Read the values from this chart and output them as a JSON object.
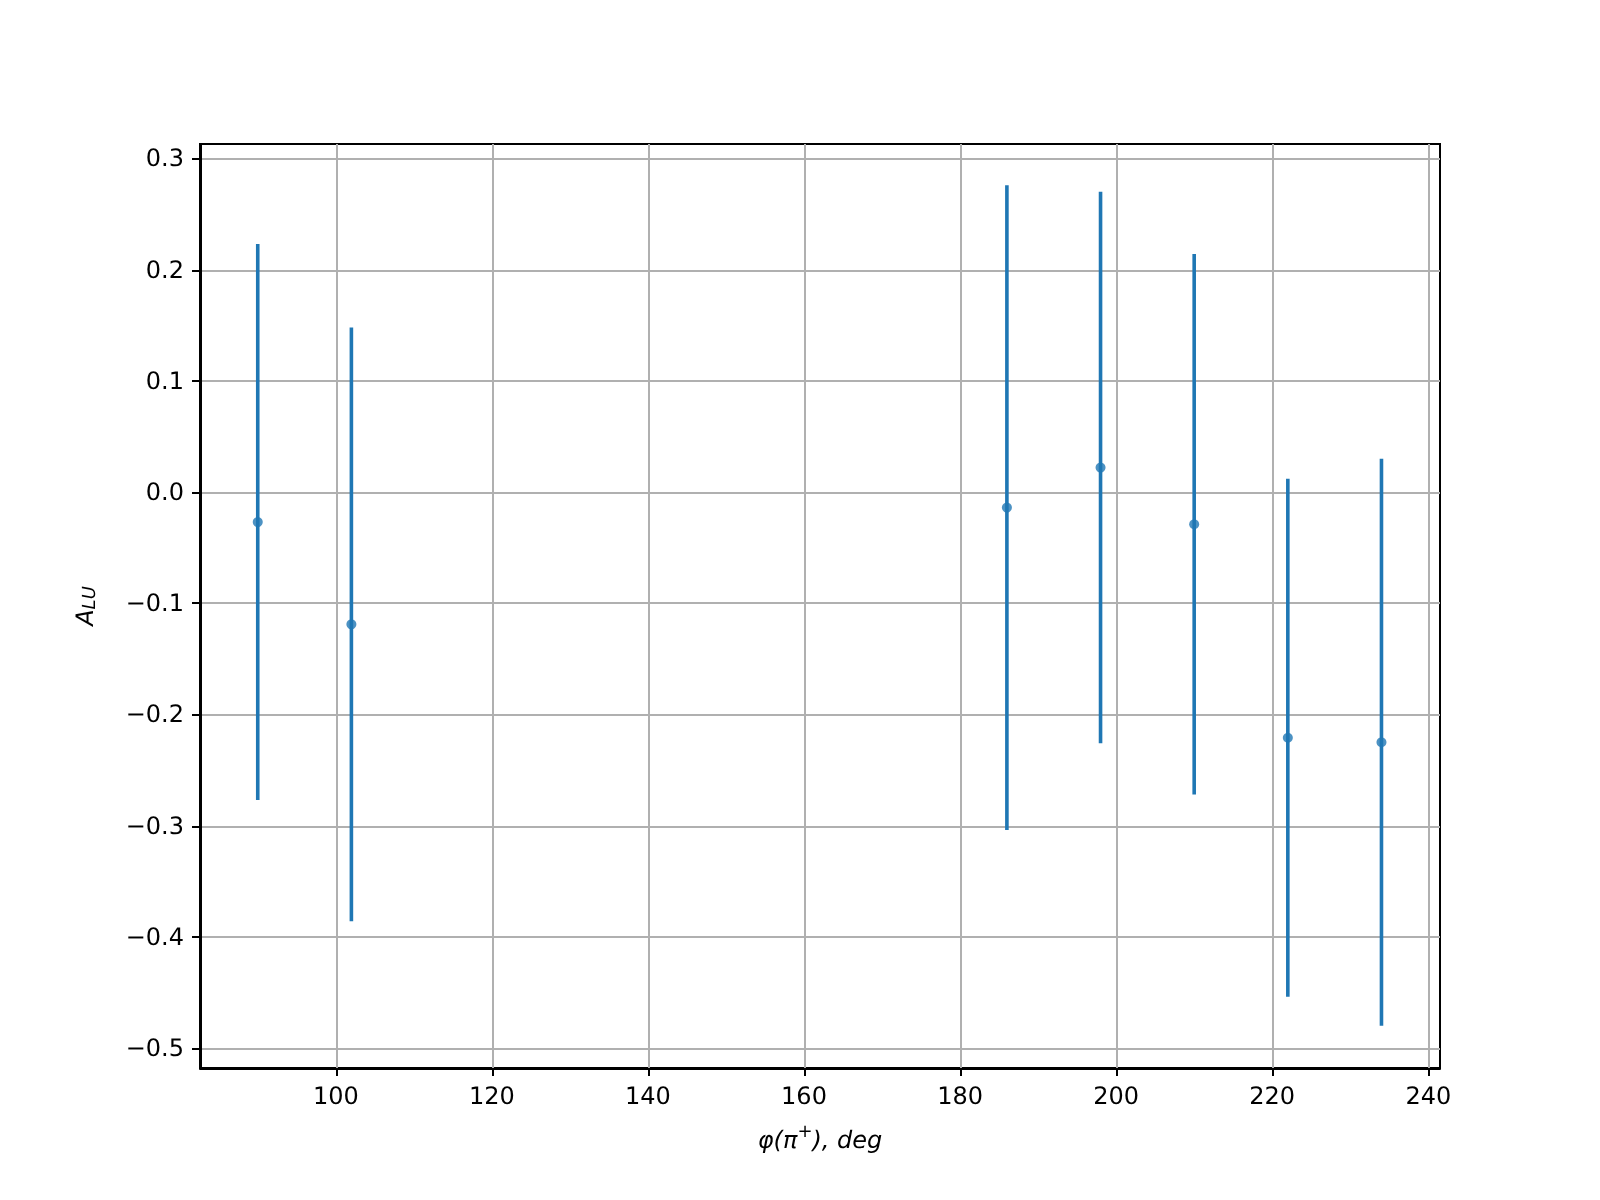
{
  "chart_data": {
    "type": "scatter",
    "xlabel": "φ(π$^{+}$), deg",
    "ylabel": "A$_{LU}$",
    "x": [
      90,
      102,
      186,
      198,
      210,
      222,
      234
    ],
    "series": [
      {
        "color": "#1f77b4",
        "values": [
          -0.027,
          -0.119,
          -0.014,
          0.022,
          -0.029,
          -0.221,
          -0.225
        ],
        "errors": [
          0.25,
          0.267,
          0.29,
          0.248,
          0.243,
          0.233,
          0.255
        ]
      }
    ],
    "xlim": [
      82.6,
      241.5
    ],
    "ylim": [
      -0.518,
      0.313
    ],
    "xticks": [
      100,
      120,
      140,
      160,
      180,
      200,
      220,
      240
    ],
    "yticks": [
      {
        "value": -0.5,
        "label": "−0.5"
      },
      {
        "value": -0.4,
        "label": "−0.4"
      },
      {
        "value": -0.3,
        "label": "−0.3"
      },
      {
        "value": -0.2,
        "label": "−0.2"
      },
      {
        "value": -0.1,
        "label": "−0.1"
      },
      {
        "value": 0,
        "label": "0.0"
      },
      {
        "value": 0.1,
        "label": "0.1"
      },
      {
        "value": 0.2,
        "label": "0.2"
      },
      {
        "value": 0.3,
        "label": "0.3"
      }
    ],
    "grid": true,
    "marker": "circle"
  }
}
